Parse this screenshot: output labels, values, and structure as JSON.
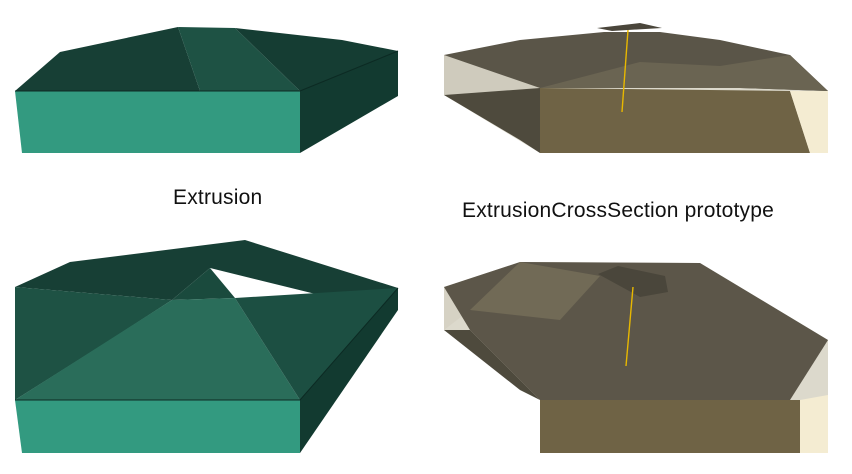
{
  "captions": {
    "left": "Extrusion",
    "right": "ExtrusionCrossSection prototype"
  },
  "colors": {
    "background": "#ffffff",
    "green_front": "#339a80",
    "green_roof": "#1e5244",
    "green_dark": "#0f3a2f",
    "green_side": "#123a30",
    "ghost_light": "#dcd9cc",
    "ghost_dark": "#4e4a3d",
    "ghost_front": "#6f6345",
    "ghost_cream": "#f4ecd2",
    "axis_yellow": "#e8b800"
  },
  "models": [
    {
      "name": "extrusion-model-top",
      "style": "opaque-green"
    },
    {
      "name": "cross-section-model-top",
      "style": "transparent-ghost"
    },
    {
      "name": "extrusion-model-bottom",
      "style": "opaque-green"
    },
    {
      "name": "cross-section-model-bottom",
      "style": "transparent-ghost"
    }
  ]
}
